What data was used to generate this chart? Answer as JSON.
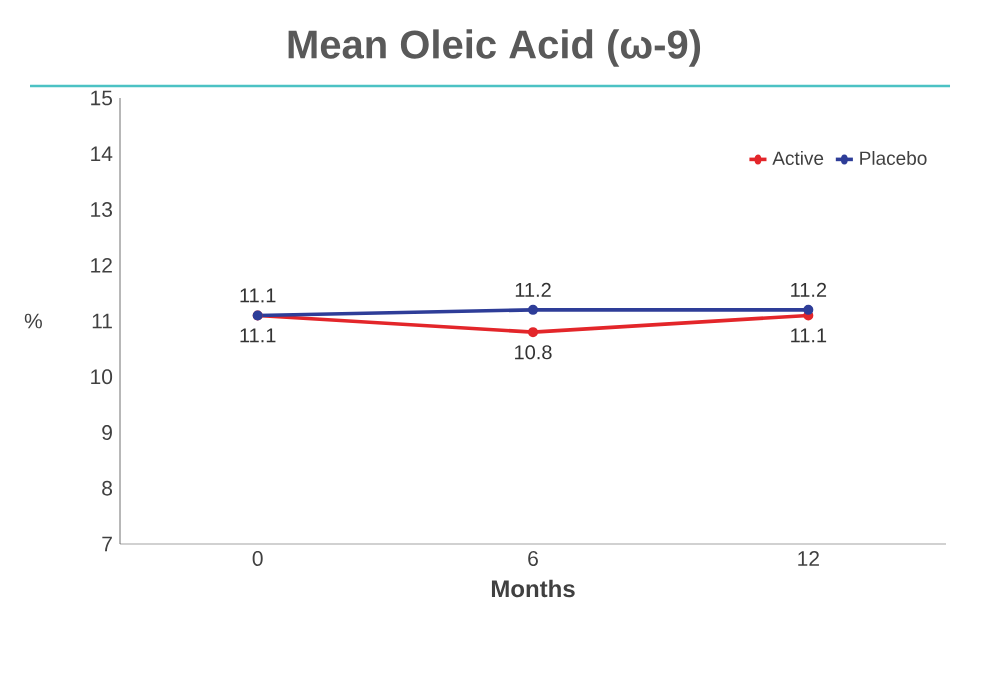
{
  "chart_data": {
    "type": "line",
    "title": "Mean Oleic Acid (ω-9)",
    "xlabel": "Months",
    "ylabel": "%",
    "categories": [
      "0",
      "6",
      "12"
    ],
    "series": [
      {
        "name": "Active",
        "color": "#e3262a",
        "values": [
          11.1,
          10.8,
          11.1
        ]
      },
      {
        "name": "Placebo",
        "color": "#2e3d98",
        "values": [
          11.1,
          11.2,
          11.2
        ]
      }
    ],
    "ylim": [
      7,
      15
    ],
    "yticks": [
      7,
      8,
      9,
      10,
      11,
      12,
      13,
      14,
      15
    ],
    "data_labels": true,
    "legend": "top right",
    "marker": "circle",
    "grid": false,
    "line_style": "solid"
  }
}
